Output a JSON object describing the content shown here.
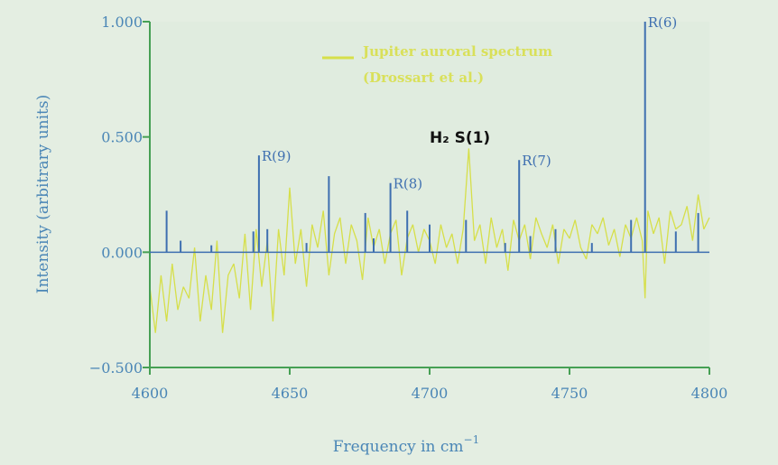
{
  "chart_data": {
    "type": "line",
    "xlabel": "Frequency in cm",
    "xlabel_exponent": "−1",
    "ylabel": "Intensity (arbitrary units)",
    "xlim": [
      4600,
      4800
    ],
    "ylim": [
      -0.5,
      1.0
    ],
    "x_ticks": [
      "4600",
      "4650",
      "4700",
      "4750",
      "4800"
    ],
    "y_ticks": [
      {
        "value": 1.0,
        "label": "1.000"
      },
      {
        "value": 0.5,
        "label": "0.500"
      },
      {
        "value": 0.0,
        "label": "0.000"
      },
      {
        "value": -0.5,
        "label": "−0.500"
      }
    ],
    "legend": {
      "placement": "top-center",
      "entries": [
        {
          "text_lines": [
            "Jupiter auroral spectrum",
            "(Drossart et al.)"
          ],
          "color": "#d6df4a"
        }
      ]
    },
    "series": [
      {
        "name": "Jupiter auroral spectrum (Drossart et al.)",
        "color": "#d6df4a",
        "x": [
          4600,
          4602,
          4604,
          4606,
          4608,
          4610,
          4612,
          4614,
          4616,
          4618,
          4620,
          4622,
          4624,
          4626,
          4628,
          4630,
          4632,
          4634,
          4636,
          4638,
          4640,
          4642,
          4644,
          4646,
          4648,
          4650,
          4652,
          4654,
          4656,
          4658,
          4660,
          4662,
          4664,
          4666,
          4668,
          4670,
          4672,
          4674,
          4676,
          4678,
          4680,
          4682,
          4684,
          4686,
          4688,
          4690,
          4692,
          4694,
          4696,
          4698,
          4700,
          4702,
          4704,
          4706,
          4708,
          4710,
          4712,
          4714,
          4716,
          4718,
          4720,
          4722,
          4724,
          4726,
          4728,
          4730,
          4732,
          4734,
          4736,
          4738,
          4740,
          4742,
          4744,
          4746,
          4748,
          4750,
          4752,
          4754,
          4756,
          4758,
          4760,
          4762,
          4764,
          4766,
          4768,
          4770,
          4772,
          4774,
          4776,
          4777,
          4778,
          4780,
          4782,
          4784,
          4786,
          4788,
          4790,
          4792,
          4794,
          4796,
          4798,
          4800
        ],
        "y": [
          -0.15,
          -0.35,
          -0.1,
          -0.3,
          -0.05,
          -0.25,
          -0.15,
          -0.2,
          0.02,
          -0.3,
          -0.1,
          -0.25,
          0.05,
          -0.35,
          -0.1,
          -0.05,
          -0.2,
          0.08,
          -0.25,
          0.1,
          -0.15,
          0.05,
          -0.3,
          0.1,
          -0.1,
          0.28,
          -0.05,
          0.1,
          -0.15,
          0.12,
          0.02,
          0.18,
          -0.1,
          0.08,
          0.15,
          -0.05,
          0.12,
          0.05,
          -0.12,
          0.15,
          0.02,
          0.1,
          -0.05,
          0.08,
          0.14,
          -0.1,
          0.06,
          0.12,
          0.0,
          0.1,
          0.05,
          -0.05,
          0.12,
          0.02,
          0.08,
          -0.05,
          0.1,
          0.45,
          0.05,
          0.12,
          -0.05,
          0.15,
          0.02,
          0.1,
          -0.08,
          0.14,
          0.05,
          0.12,
          -0.03,
          0.15,
          0.08,
          0.02,
          0.12,
          -0.05,
          0.1,
          0.06,
          0.14,
          0.02,
          -0.03,
          0.12,
          0.08,
          0.15,
          0.03,
          0.1,
          -0.02,
          0.12,
          0.06,
          0.15,
          0.05,
          -0.2,
          0.18,
          0.08,
          0.15,
          -0.05,
          0.18,
          0.1,
          0.12,
          0.2,
          0.05,
          0.25,
          0.1,
          0.15
        ]
      }
    ],
    "emission_lines": [
      {
        "label": "",
        "x": 4606,
        "y": 0.18
      },
      {
        "label": "",
        "x": 4611,
        "y": 0.05
      },
      {
        "label": "",
        "x": 4622,
        "y": 0.03
      },
      {
        "label": "",
        "x": 4637,
        "y": 0.09
      },
      {
        "label": "R(9)",
        "x": 4639,
        "y": 0.42
      },
      {
        "label": "",
        "x": 4642,
        "y": 0.1
      },
      {
        "label": "",
        "x": 4656,
        "y": 0.04
      },
      {
        "label": "",
        "x": 4664,
        "y": 0.33
      },
      {
        "label": "",
        "x": 4677,
        "y": 0.17
      },
      {
        "label": "",
        "x": 4680,
        "y": 0.06
      },
      {
        "label": "R(8)",
        "x": 4686,
        "y": 0.3
      },
      {
        "label": "",
        "x": 4692,
        "y": 0.18
      },
      {
        "label": "",
        "x": 4700,
        "y": 0.12
      },
      {
        "label": "",
        "x": 4713,
        "y": 0.14
      },
      {
        "label": "",
        "x": 4727,
        "y": 0.04
      },
      {
        "label": "R(7)",
        "x": 4732,
        "y": 0.4
      },
      {
        "label": "",
        "x": 4736,
        "y": 0.07
      },
      {
        "label": "",
        "x": 4745,
        "y": 0.1
      },
      {
        "label": "",
        "x": 4758,
        "y": 0.04
      },
      {
        "label": "",
        "x": 4772,
        "y": 0.14
      },
      {
        "label": "R(6)",
        "x": 4777,
        "y": 1.0
      },
      {
        "label": "",
        "x": 4788,
        "y": 0.09
      },
      {
        "label": "",
        "x": 4796,
        "y": 0.17
      }
    ],
    "annotations": [
      {
        "text": "H₂ S(1)",
        "x": 4714,
        "y": 0.58,
        "style": "handwritten"
      }
    ],
    "grid": false,
    "line_color": "#3e6fb0",
    "axis_color": "#46a054",
    "text_color": "#4a86b6",
    "background": "#e4eee2"
  }
}
